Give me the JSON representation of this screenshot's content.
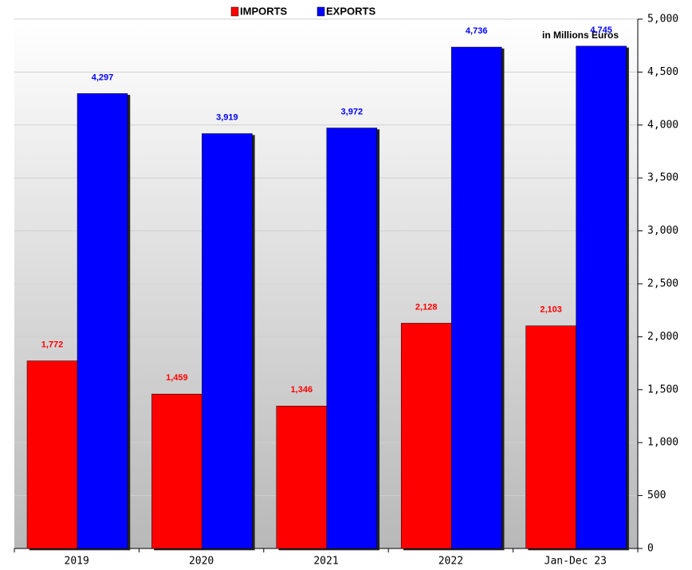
{
  "chart_data": {
    "type": "bar",
    "categories": [
      "2019",
      "2020",
      "2021",
      "2022",
      "Jan-Dec 23"
    ],
    "series": [
      {
        "name": "IMPORTS",
        "color": "#ff0000",
        "values": [
          1772,
          1459,
          1346,
          2128,
          2103
        ],
        "value_labels": [
          "1,772",
          "1,459",
          "1,346",
          "2,128",
          "2,103"
        ]
      },
      {
        "name": "EXPORTS",
        "color": "#0000ff",
        "values": [
          4297,
          3919,
          3972,
          4736,
          4745
        ],
        "value_labels": [
          "4,297",
          "3,919",
          "3,972",
          "4,736",
          "4,745"
        ]
      }
    ],
    "annotation": "in Millions Euros",
    "ylim": [
      0,
      5000
    ],
    "yticks": [
      0,
      500,
      {
        "value": 1000,
        "label": "1,000"
      },
      {
        "value": 1500,
        "label": "1,500"
      },
      {
        "value": 2000,
        "label": "2,000"
      },
      {
        "value": 2500,
        "label": "2,500"
      },
      {
        "value": 3000,
        "label": "3,000"
      },
      {
        "value": 3500,
        "label": "3,500"
      },
      {
        "value": 4000,
        "label": "4,000"
      },
      {
        "value": 4500,
        "label": "4,500"
      },
      {
        "value": 5000,
        "label": "5,000"
      }
    ],
    "grid": true
  }
}
